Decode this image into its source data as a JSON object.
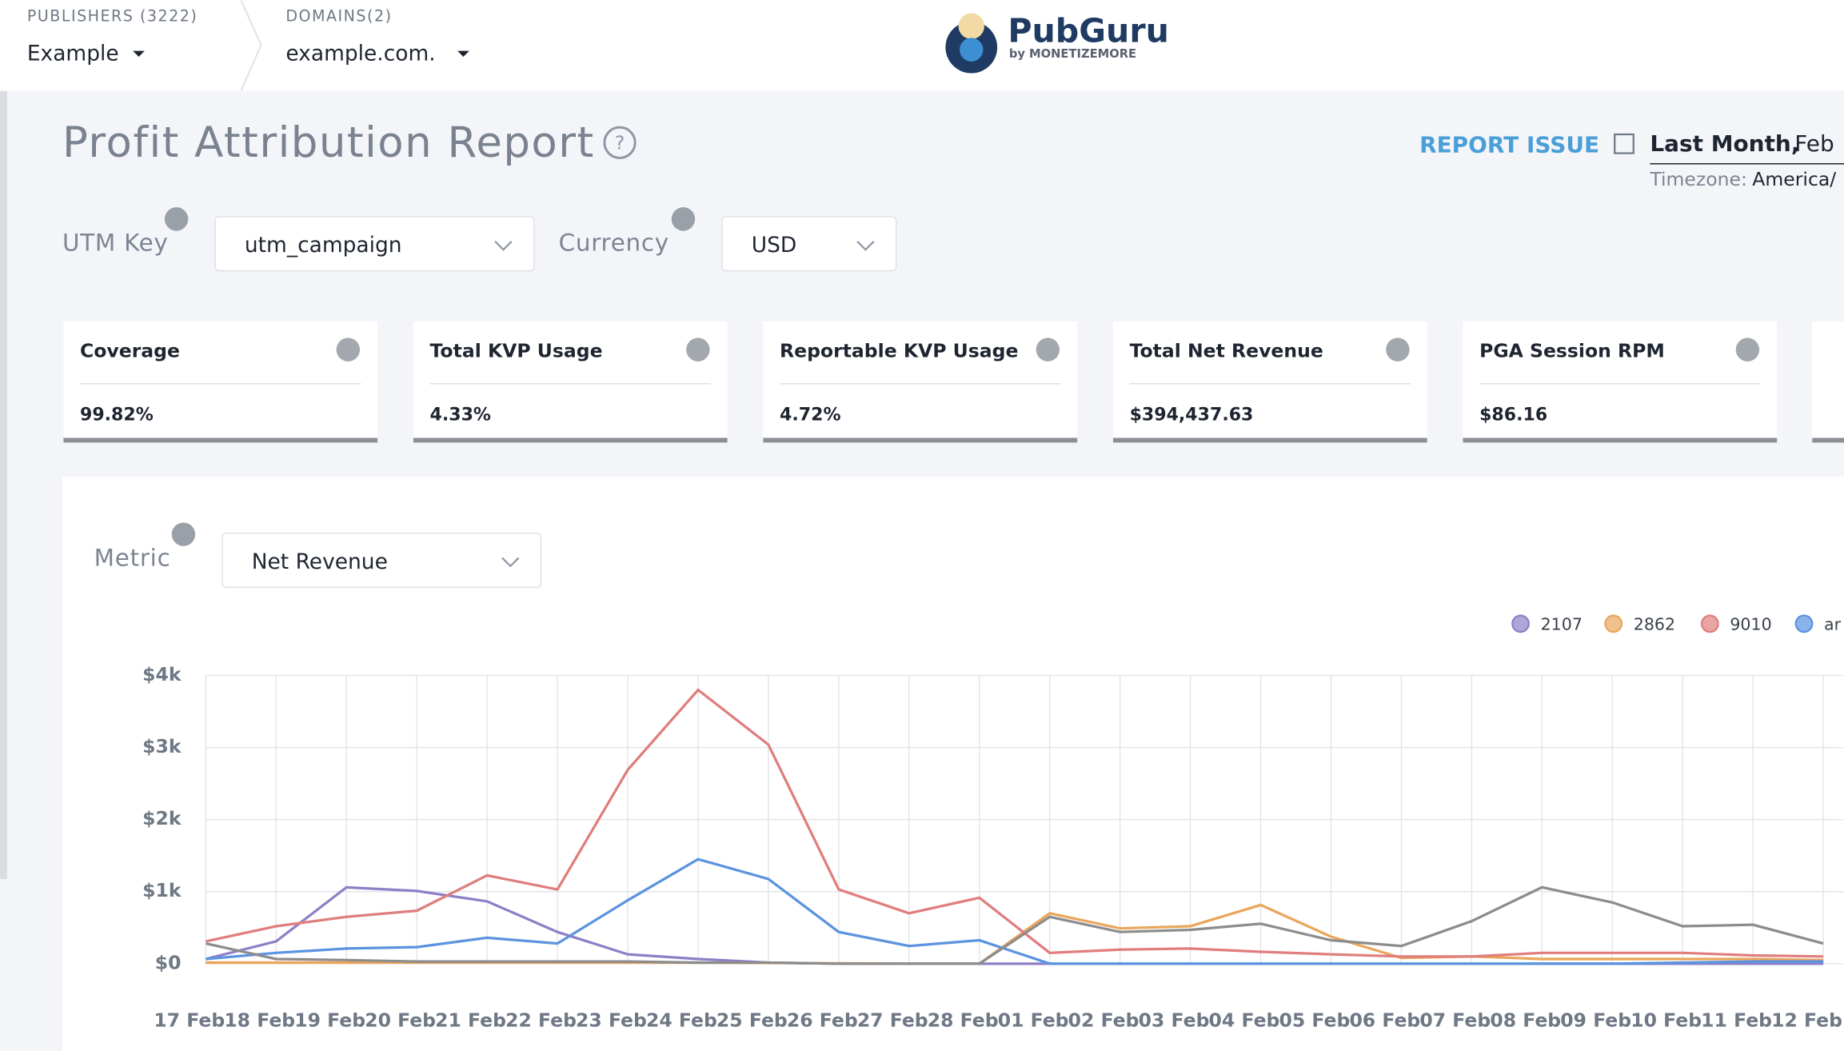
{
  "header": {
    "publishers_label": "PUBLISHERS (3222)",
    "publisher": "Example",
    "domains_label": "DOMAINS(2)",
    "domain": "example.com.",
    "logo": "PubGuru",
    "logo_sub": "by MONETIZEMORE"
  },
  "page": {
    "title": "Profit Attribution Report",
    "report_issue": "REPORT ISSUE",
    "date_range": "Last Month,",
    "date_value": "Feb",
    "timezone_label": "Timezone:",
    "timezone_value": "America/"
  },
  "filters": {
    "utm_key_label": "UTM Key",
    "utm_key_value": "utm_campaign",
    "currency_label": "Currency",
    "currency_value": "USD",
    "metric_label": "Metric",
    "metric_value": "Net Revenue"
  },
  "cards": [
    {
      "title": "Coverage",
      "value": "99.82%"
    },
    {
      "title": "Total KVP Usage",
      "value": "4.33%"
    },
    {
      "title": "Reportable KVP Usage",
      "value": "4.72%"
    },
    {
      "title": "Total Net Revenue",
      "value": "$394,437.63"
    },
    {
      "title": "PGA Session RPM",
      "value": "$86.16"
    }
  ],
  "chart_data": {
    "type": "line",
    "categories": [
      "17 Feb",
      "18 Feb",
      "19 Feb",
      "20 Feb",
      "21 Feb",
      "22 Feb",
      "23 Feb",
      "24 Feb",
      "25 Feb",
      "26 Feb",
      "27 Feb",
      "28 Feb",
      "01 Feb",
      "02 Feb",
      "03 Feb",
      "04 Feb",
      "05 Feb",
      "06 Feb",
      "07 Feb",
      "08 Feb",
      "09 Feb",
      "10 Feb",
      "11 Feb",
      "12 Feb"
    ],
    "ylim": [
      0,
      4000
    ],
    "yticks": [
      {
        "value": 0,
        "label": "$0"
      },
      {
        "value": 1000,
        "label": "$1k"
      },
      {
        "value": 2000,
        "label": "$2k"
      },
      {
        "value": 3000,
        "label": "$3k"
      },
      {
        "value": 4000,
        "label": "$4k"
      }
    ],
    "grid": true,
    "series": [
      {
        "name": "2107",
        "color": "#8f7fc6",
        "values": [
          65,
          310,
          1060,
          1010,
          865,
          440,
          130,
          65,
          15,
          0,
          0,
          0,
          0,
          0,
          0,
          0,
          0,
          0,
          0,
          0,
          0,
          0,
          0,
          0
        ]
      },
      {
        "name": "2862",
        "color": "#e9a65b",
        "values": [
          15,
          15,
          15,
          15,
          15,
          15,
          15,
          15,
          10,
          5,
          0,
          0,
          700,
          490,
          520,
          815,
          375,
          80,
          100,
          65,
          65,
          65,
          65,
          50
        ]
      },
      {
        "name": "9010",
        "color": "#e07d7d",
        "values": [
          310,
          520,
          650,
          735,
          1225,
          1030,
          2690,
          3800,
          3040,
          1030,
          700,
          915,
          150,
          195,
          210,
          165,
          130,
          100,
          100,
          150,
          150,
          150,
          115,
          100
        ]
      },
      {
        "name": "ar",
        "color": "#5b93e0",
        "values": [
          65,
          150,
          210,
          230,
          360,
          280,
          880,
          1450,
          1175,
          440,
          245,
          325,
          0,
          0,
          0,
          0,
          0,
          0,
          0,
          0,
          0,
          15,
          30,
          30
        ]
      },
      {
        "color": "#8c8c8c",
        "values": [
          280,
          65,
          50,
          30,
          30,
          30,
          30,
          15,
          15,
          0,
          0,
          0,
          650,
          440,
          470,
          555,
          325,
          245,
          590,
          1060,
          850,
          520,
          540,
          280
        ]
      }
    ]
  }
}
